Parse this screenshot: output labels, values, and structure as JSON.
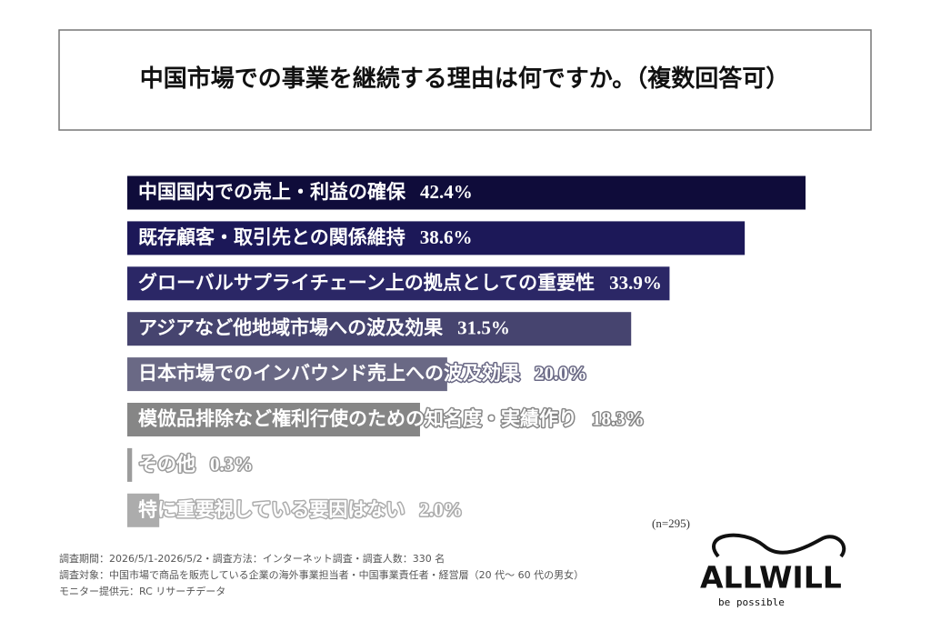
{
  "title": "中国市場での事業を継続する理由は何ですか。（複数回答可）",
  "chart_data": {
    "type": "hbar",
    "categories": [
      "中国国内での売上・利益の確保",
      "既存顧客・取引先との関係維持",
      "グローバルサプライチェーン上の拠点としての重要性",
      "アジアなど他地域市場への波及効果",
      "日本市場でのインバウンド売上への波及効果",
      "模倣品排除など権利行使のための知名度・実績作り",
      "その他",
      "特に重要視している要因はない"
    ],
    "values": [
      42.4,
      38.6,
      33.9,
      31.5,
      20.0,
      18.3,
      0.3,
      2.0
    ],
    "value_labels": [
      "42.4%",
      "38.6%",
      "33.9%",
      "31.5%",
      "20.0%",
      "18.3%",
      "0.3%",
      "2.0%"
    ],
    "colors": [
      "#0f0c3a",
      "#1c1858",
      "#2b2766",
      "#46446f",
      "#6a6985",
      "#868686",
      "#9c9c9c",
      "#acacac"
    ],
    "xlim": [
      0,
      42.4
    ],
    "annotation": "(n=295)"
  },
  "footer": [
    "調査期間：2026/5/1-2026/5/2・調査方法：インターネット調査・調査人数：330 名",
    "調査対象：中国市場で商品を販売している企業の海外事業担当者・中国事業責任者・経営層（20 代〜 60 代の男女）",
    "モニター提供元：RC リサーチデータ"
  ],
  "logo": {
    "name": "ALLWILL",
    "tagline": "be possible"
  }
}
